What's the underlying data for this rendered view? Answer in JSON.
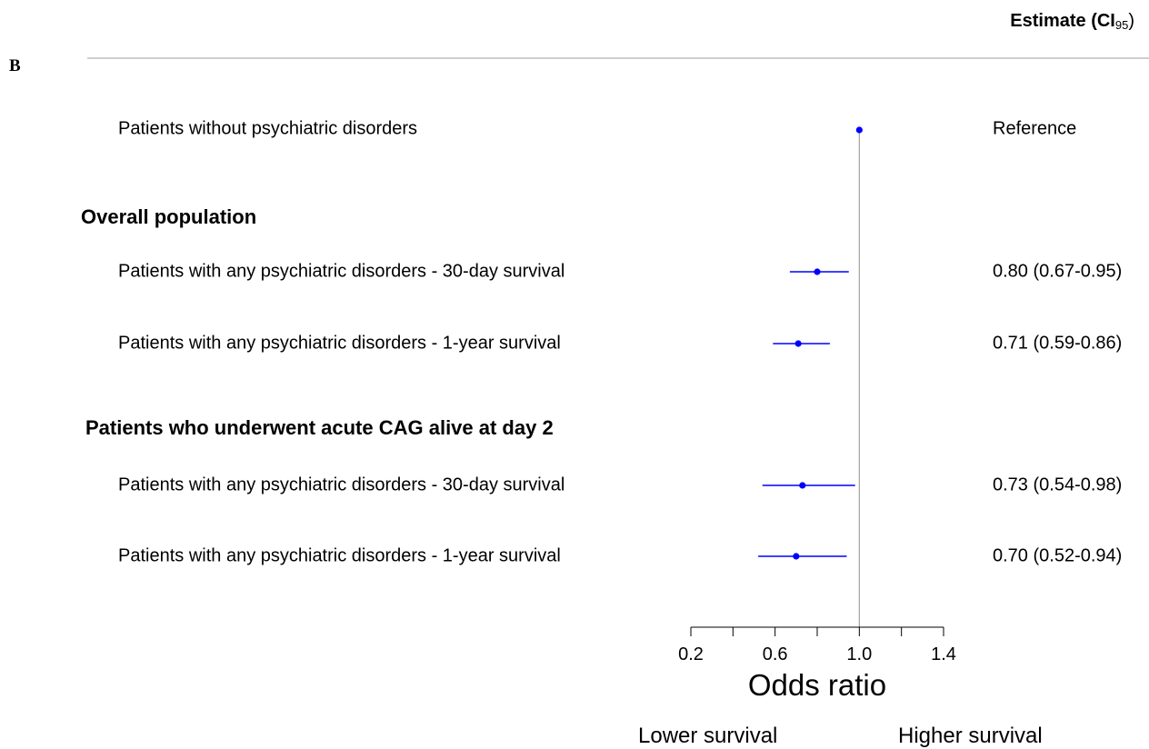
{
  "panel_letter": "B",
  "estimate_header": {
    "main": "Estimate (",
    "ci": "CI",
    "sub": "95",
    "close": ")"
  },
  "groups": [
    {
      "label": "Overall population"
    },
    {
      "label": "Patients who underwent acute CAG alive at day 2"
    }
  ],
  "directions": {
    "left": "Lower survival",
    "right": "Higher survival"
  },
  "chart_data": {
    "type": "forest",
    "xlabel": "Odds ratio",
    "xlim": [
      0.2,
      1.4
    ],
    "xticks": [
      0.2,
      0.4,
      0.6,
      0.8,
      1.0,
      1.2,
      1.4
    ],
    "xtick_labels": [
      "0.2",
      "",
      "0.6",
      "",
      "1.0",
      "",
      "1.4"
    ],
    "reference_line": 1.0,
    "marker_color": "#0000ff",
    "rows": [
      {
        "label": "Patients without psychiatric disorders",
        "estimate": 1.0,
        "lower": null,
        "upper": null,
        "text": "Reference"
      },
      {
        "label": "Patients with any psychiatric disorders - 30-day survival",
        "estimate": 0.8,
        "lower": 0.67,
        "upper": 0.95,
        "text": "0.80 (0.67-0.95)"
      },
      {
        "label": "Patients with any psychiatric disorders - 1-year survival",
        "estimate": 0.71,
        "lower": 0.59,
        "upper": 0.86,
        "text": "0.71 (0.59-0.86)"
      },
      {
        "label": "Patients with any psychiatric disorders - 30-day survival",
        "estimate": 0.73,
        "lower": 0.54,
        "upper": 0.98,
        "text": "0.73 (0.54-0.98)"
      },
      {
        "label": "Patients with any psychiatric disorders - 1-year survival",
        "estimate": 0.7,
        "lower": 0.52,
        "upper": 0.94,
        "text": "0.70 (0.52-0.94)"
      }
    ]
  }
}
